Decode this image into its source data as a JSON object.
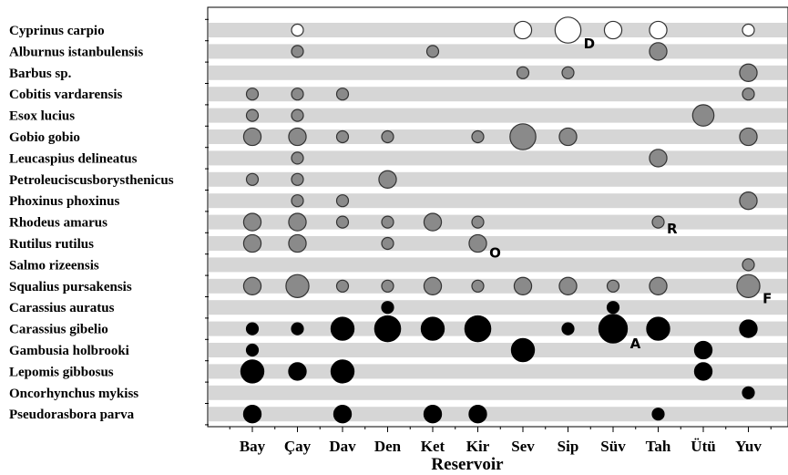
{
  "chart_data": {
    "type": "bubble",
    "xlabel": "Reservoir",
    "categories": [
      "Bay",
      "Çay",
      "Dav",
      "Den",
      "Ket",
      "Kir",
      "Sev",
      "Sip",
      "Süv",
      "Tah",
      "Ütü",
      "Yuv"
    ],
    "species": [
      {
        "name": "Cyprinus carpio",
        "color": "white"
      },
      {
        "name": "Alburnus istanbulensis",
        "color": "grey"
      },
      {
        "name": "Barbus sp.",
        "color": "grey"
      },
      {
        "name": "Cobitis vardarensis",
        "color": "grey"
      },
      {
        "name": "Esox lucius",
        "color": "grey"
      },
      {
        "name": "Gobio gobio",
        "color": "grey"
      },
      {
        "name": "Leucaspius delineatus",
        "color": "grey"
      },
      {
        "name": "Petroleuciscusborysthenicus",
        "color": "grey"
      },
      {
        "name": "Phoxinus phoxinus",
        "color": "grey"
      },
      {
        "name": "Rhodeus amarus",
        "color": "grey"
      },
      {
        "name": "Rutilus rutilus",
        "color": "grey"
      },
      {
        "name": "Salmo rizeensis",
        "color": "grey"
      },
      {
        "name": "Squalius pursakensis",
        "color": "grey"
      },
      {
        "name": "Carassius auratus",
        "color": "black"
      },
      {
        "name": "Carassius gibelio",
        "color": "black"
      },
      {
        "name": "Gambusia holbrooki",
        "color": "black"
      },
      {
        "name": "Lepomis gibbosus",
        "color": "black"
      },
      {
        "name": "Oncorhynchus mykiss",
        "color": "black"
      },
      {
        "name": "Pseudorasbora parva",
        "color": "black"
      }
    ],
    "points": [
      {
        "s": 0,
        "r": "Çay",
        "v": 1
      },
      {
        "s": 0,
        "r": "Sev",
        "v": 3
      },
      {
        "s": 0,
        "r": "Sip",
        "v": 8
      },
      {
        "s": 0,
        "r": "Süv",
        "v": 3
      },
      {
        "s": 0,
        "r": "Tah",
        "v": 3
      },
      {
        "s": 0,
        "r": "Yuv",
        "v": 1
      },
      {
        "s": 1,
        "r": "Çay",
        "v": 1
      },
      {
        "s": 1,
        "r": "Ket",
        "v": 1
      },
      {
        "s": 1,
        "r": "Tah",
        "v": 3
      },
      {
        "s": 2,
        "r": "Sev",
        "v": 1
      },
      {
        "s": 2,
        "r": "Sip",
        "v": 1
      },
      {
        "s": 2,
        "r": "Yuv",
        "v": 3
      },
      {
        "s": 3,
        "r": "Bay",
        "v": 1
      },
      {
        "s": 3,
        "r": "Çay",
        "v": 1
      },
      {
        "s": 3,
        "r": "Dav",
        "v": 1
      },
      {
        "s": 3,
        "r": "Yuv",
        "v": 1
      },
      {
        "s": 4,
        "r": "Bay",
        "v": 1
      },
      {
        "s": 4,
        "r": "Çay",
        "v": 1
      },
      {
        "s": 4,
        "r": "Ütü",
        "v": 5
      },
      {
        "s": 5,
        "r": "Bay",
        "v": 3
      },
      {
        "s": 5,
        "r": "Çay",
        "v": 3
      },
      {
        "s": 5,
        "r": "Dav",
        "v": 1
      },
      {
        "s": 5,
        "r": "Den",
        "v": 1
      },
      {
        "s": 5,
        "r": "Kir",
        "v": 1
      },
      {
        "s": 5,
        "r": "Sev",
        "v": 8
      },
      {
        "s": 5,
        "r": "Sip",
        "v": 3
      },
      {
        "s": 5,
        "r": "Yuv",
        "v": 3
      },
      {
        "s": 6,
        "r": "Çay",
        "v": 1
      },
      {
        "s": 6,
        "r": "Tah",
        "v": 3
      },
      {
        "s": 7,
        "r": "Bay",
        "v": 1
      },
      {
        "s": 7,
        "r": "Çay",
        "v": 1
      },
      {
        "s": 7,
        "r": "Den",
        "v": 3
      },
      {
        "s": 8,
        "r": "Çay",
        "v": 1
      },
      {
        "s": 8,
        "r": "Dav",
        "v": 1
      },
      {
        "s": 8,
        "r": "Yuv",
        "v": 3
      },
      {
        "s": 9,
        "r": "Bay",
        "v": 3
      },
      {
        "s": 9,
        "r": "Çay",
        "v": 3
      },
      {
        "s": 9,
        "r": "Dav",
        "v": 1
      },
      {
        "s": 9,
        "r": "Den",
        "v": 1
      },
      {
        "s": 9,
        "r": "Ket",
        "v": 3
      },
      {
        "s": 9,
        "r": "Kir",
        "v": 1
      },
      {
        "s": 9,
        "r": "Tah",
        "v": 1
      },
      {
        "s": 10,
        "r": "Bay",
        "v": 3
      },
      {
        "s": 10,
        "r": "Çay",
        "v": 3
      },
      {
        "s": 10,
        "r": "Den",
        "v": 1
      },
      {
        "s": 10,
        "r": "Kir",
        "v": 3
      },
      {
        "s": 11,
        "r": "Yuv",
        "v": 1
      },
      {
        "s": 12,
        "r": "Bay",
        "v": 3
      },
      {
        "s": 12,
        "r": "Çay",
        "v": 6
      },
      {
        "s": 12,
        "r": "Dav",
        "v": 1
      },
      {
        "s": 12,
        "r": "Den",
        "v": 1
      },
      {
        "s": 12,
        "r": "Ket",
        "v": 3
      },
      {
        "s": 12,
        "r": "Kir",
        "v": 1
      },
      {
        "s": 12,
        "r": "Sev",
        "v": 3
      },
      {
        "s": 12,
        "r": "Sip",
        "v": 3
      },
      {
        "s": 12,
        "r": "Süv",
        "v": 1
      },
      {
        "s": 12,
        "r": "Tah",
        "v": 3
      },
      {
        "s": 12,
        "r": "Yuv",
        "v": 6
      },
      {
        "s": 13,
        "r": "Den",
        "v": 1
      },
      {
        "s": 13,
        "r": "Süv",
        "v": 1
      },
      {
        "s": 14,
        "r": "Bay",
        "v": 1
      },
      {
        "s": 14,
        "r": "Çay",
        "v": 1
      },
      {
        "s": 14,
        "r": "Dav",
        "v": 6
      },
      {
        "s": 14,
        "r": "Den",
        "v": 8
      },
      {
        "s": 14,
        "r": "Ket",
        "v": 6
      },
      {
        "s": 14,
        "r": "Kir",
        "v": 8
      },
      {
        "s": 14,
        "r": "Sip",
        "v": 1
      },
      {
        "s": 14,
        "r": "Süv",
        "v": 10
      },
      {
        "s": 14,
        "r": "Tah",
        "v": 6
      },
      {
        "s": 14,
        "r": "Yuv",
        "v": 3
      },
      {
        "s": 15,
        "r": "Bay",
        "v": 1
      },
      {
        "s": 15,
        "r": "Sev",
        "v": 6
      },
      {
        "s": 15,
        "r": "Ütü",
        "v": 3
      },
      {
        "s": 16,
        "r": "Bay",
        "v": 6
      },
      {
        "s": 16,
        "r": "Çay",
        "v": 3
      },
      {
        "s": 16,
        "r": "Dav",
        "v": 6
      },
      {
        "s": 16,
        "r": "Ütü",
        "v": 3
      },
      {
        "s": 17,
        "r": "Yuv",
        "v": 1
      },
      {
        "s": 18,
        "r": "Bay",
        "v": 3
      },
      {
        "s": 18,
        "r": "Dav",
        "v": 3
      },
      {
        "s": 18,
        "r": "Ket",
        "v": 3
      },
      {
        "s": 18,
        "r": "Kir",
        "v": 3
      },
      {
        "s": 18,
        "r": "Tah",
        "v": 1
      }
    ],
    "annotations": [
      {
        "text": "D",
        "s": 0,
        "r": "Sip"
      },
      {
        "text": "R",
        "s": 9,
        "r": "Tah"
      },
      {
        "text": "O",
        "s": 10,
        "r": "Kir"
      },
      {
        "text": "F",
        "s": 12,
        "r": "Yuv"
      },
      {
        "text": "A",
        "s": 14,
        "r": "Süv"
      }
    ],
    "colors": {
      "white": "#ffffff",
      "grey": "#8a8a8a",
      "black": "#000000",
      "band": "#d6d6d6"
    }
  }
}
